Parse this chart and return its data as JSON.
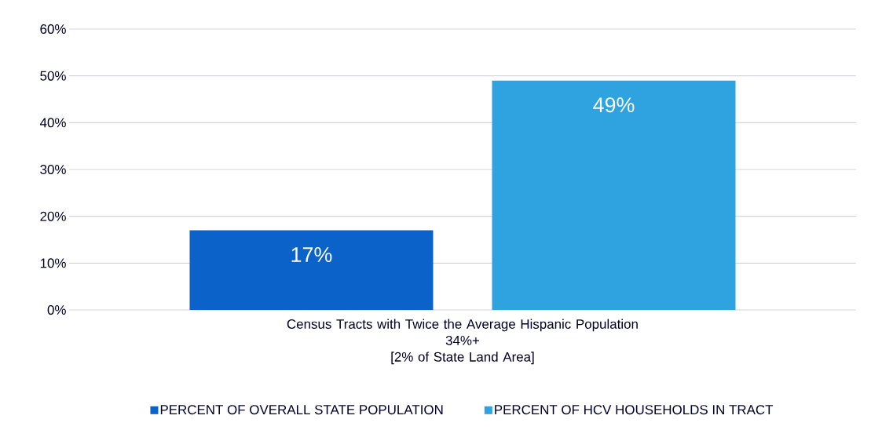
{
  "chart_data": {
    "type": "bar",
    "categories": [
      "Census Tracts with Twice the Average Hispanic Population\n34%+\n[2% of State Land Area]"
    ],
    "series": [
      {
        "name": "PERCENT OF OVERALL STATE POPULATION",
        "color": "#0B62C8",
        "values": [
          17
        ],
        "value_labels": [
          "17%"
        ]
      },
      {
        "name": "PERCENT OF HCV HOUSEHOLDS IN TRACT",
        "color": "#2EA3E0",
        "values": [
          49
        ],
        "value_labels": [
          "49%"
        ]
      }
    ],
    "ylim": [
      0,
      60
    ],
    "yticks": [
      {
        "value": 0,
        "label": "0%"
      },
      {
        "value": 10,
        "label": "10%"
      },
      {
        "value": 20,
        "label": "20%"
      },
      {
        "value": 30,
        "label": "30%"
      },
      {
        "value": 40,
        "label": "40%"
      },
      {
        "value": 50,
        "label": "50%"
      },
      {
        "value": 60,
        "label": "60%"
      }
    ],
    "grid": "y",
    "legend": "bottom"
  }
}
